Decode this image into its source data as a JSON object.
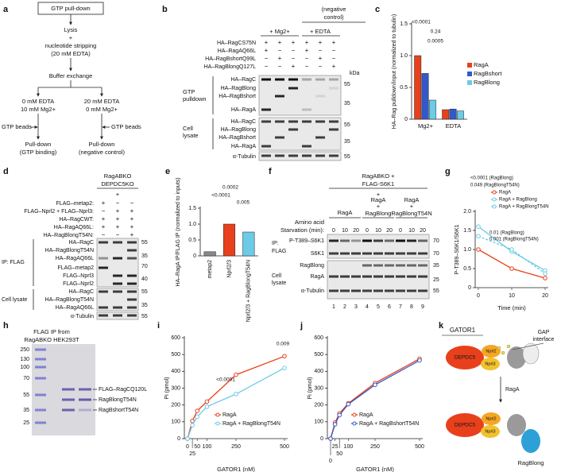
{
  "panel_labels": [
    "a",
    "b",
    "c",
    "d",
    "e",
    "f",
    "g",
    "h",
    "i",
    "j",
    "k"
  ],
  "a": {
    "title": "GTP pull-down",
    "lines": [
      "Lysis",
      "+",
      "nucleotide stripping",
      "(20 mM EDTA)",
      "Buffer exchange",
      "0 mM EDTA",
      "10 mM Mg2+",
      "20 mM EDTA",
      "0 mM Mg2+",
      "GTP beads",
      "GTP beads",
      "Pull-down",
      "(GTP binding)",
      "Pull-down",
      "(negative control)"
    ]
  },
  "b": {
    "header": [
      "(negative",
      "control)",
      "+ Mg2+",
      "+ EDTA"
    ],
    "rows": [
      "HA–RagCS75N",
      "HA–RagAQ66L",
      "HA–RagBshortQ99L",
      "HA–RagBlongQ127L"
    ],
    "signs": [
      [
        "+",
        "+",
        "+",
        "+",
        "+",
        "+"
      ],
      [
        "+",
        "−",
        "−",
        "+",
        "−",
        "−"
      ],
      [
        "−",
        "+",
        "−",
        "−",
        "+",
        "−"
      ],
      [
        "−",
        "−",
        "+",
        "−",
        "−",
        "+"
      ]
    ],
    "blot_titles": [
      "GTP",
      "pulldown",
      "Cell",
      "lysate"
    ],
    "bands": [
      "HA–RagC",
      "HA–RagBlong",
      "HA–RagBshort",
      "HA–RagA",
      "HA–RagC",
      "HA–RagBlong",
      "HA–RagBshort",
      "HA–RagA",
      "α-Tubulin"
    ],
    "kda": [
      "kDa",
      "55",
      "35",
      "55",
      "35",
      "55"
    ]
  },
  "d": {
    "header": [
      "RagABKO",
      "DEPDC5KO",
      "+"
    ],
    "rows": [
      "FLAG–metap2:",
      "FLAG–Nprl2 + FLAG–Nprl3:",
      "HA–RagCWT:",
      "HA–RagAQ66L:",
      "HA–RagBlongT54N:"
    ],
    "signs": [
      [
        "+",
        "−",
        "−"
      ],
      [
        "−",
        "+",
        "+"
      ],
      [
        "+",
        "+",
        "+"
      ],
      [
        "+",
        "+",
        "+"
      ],
      [
        "−",
        "−",
        "+"
      ]
    ],
    "blot_titles": [
      "IP: FLAG",
      "Cell lysate"
    ],
    "bands": [
      "HA–RagC",
      "HA–RagBlongT54N",
      "HA–RagAQ66L",
      "FLAG–metap2",
      "FLAG–Nprl3",
      "FLAG–Nprl2",
      "HA–RagC",
      "HA–RagBlongT54N",
      "HA–RagAQ66L",
      "α-Tubulin"
    ],
    "kda": [
      "55",
      "35",
      "70",
      "40",
      "55",
      "35",
      "55"
    ]
  },
  "f": {
    "header": [
      "RagABKO +",
      "FLAG-S6K1",
      "+"
    ],
    "groups": [
      "RagA",
      "RagA",
      "+",
      "RagBlong",
      "RagA",
      "+",
      "RagBlongT54N"
    ],
    "starvation": [
      "Amino acid",
      "Starvation (min):"
    ],
    "times": [
      "0",
      "10",
      "20",
      "0",
      "10",
      "20",
      "0",
      "10",
      "20"
    ],
    "blot_titles": [
      "IP:",
      "FLAG",
      "Cell",
      "lysate"
    ],
    "bands": [
      "P-T389–S6K1",
      "S6K1",
      "RagBlong",
      "RagA",
      "α-Tubulin"
    ],
    "kda": [
      "70",
      "70",
      "35",
      "25",
      "55"
    ],
    "lanes": [
      "1",
      "2",
      "3",
      "4",
      "5",
      "6",
      "7",
      "8",
      "9"
    ]
  },
  "h": {
    "title": [
      "FLAG IP from",
      "RagABKO HEK293T"
    ],
    "ladder": [
      "250",
      "130",
      "100",
      "70",
      "55",
      "35",
      "25"
    ],
    "bands": [
      "FLAG–RagCQ120L",
      "RagBlongT54N",
      "RagBshortT54N"
    ]
  },
  "k": {
    "title": "GATOR1",
    "proteins": [
      "DEPDC5",
      "Nprl2",
      "Nprl3",
      "DEPDC5",
      "Nprl2",
      "Nprl3"
    ],
    "gap": [
      "GAP",
      "interface"
    ],
    "arrow": "RagA",
    "bottom": "RagBlong"
  },
  "chart_data": [
    {
      "type": "bar",
      "y_label": "HA–Rag pulldown/input (normalized to tubulin)",
      "categories": [
        "Mg2+",
        "EDTA"
      ],
      "series": [
        {
          "name": "RagA",
          "color": "#e8401c",
          "values": [
            1.0,
            0.15
          ]
        },
        {
          "name": "RagBshort",
          "color": "#3558c8",
          "values": [
            0.72,
            0.16
          ]
        },
        {
          "name": "RagBlong",
          "color": "#6ccbe6",
          "values": [
            0.3,
            0.13
          ]
        }
      ],
      "ylim": [
        0,
        1.5
      ],
      "yticks": [
        0,
        0.5,
        {
          "value": 1,
          "label": "1.0"
        },
        1.5
      ],
      "annotations": [
        "<0.0001",
        "0.24",
        "0.0005"
      ]
    },
    {
      "type": "bar",
      "y_label": "HA–RagA IP/FLAG IP (normalized to inputs)",
      "categories": [
        "metap2",
        "Nprl2/3",
        "Nprl2/3 + RagBlongT54N"
      ],
      "values": [
        0.13,
        1.0,
        0.75
      ],
      "colors": [
        "#888888",
        "#e8401c",
        "#6ccbe6"
      ],
      "ylim": [
        0,
        1.5
      ],
      "yticks": [
        0,
        0.5,
        {
          "value": 1,
          "label": "1.0"
        },
        1.5
      ],
      "annotations": [
        "0.0002",
        "<0.0001",
        "0.005"
      ]
    },
    {
      "type": "line",
      "x_label": "Time (min)",
      "y_label": "P-T389–S6K1/S6K1",
      "x": [
        0,
        10,
        20
      ],
      "series": [
        {
          "name": "RagA",
          "color": "#e8401c",
          "values": [
            1.0,
            0.5,
            0.25
          ]
        },
        {
          "name": "RagA + RagBlong",
          "color": "#6ccbe6",
          "values": [
            1.6,
            0.95,
            0.45
          ]
        },
        {
          "name": "RagA + RagBlongT54N",
          "color": "#6ccbe6",
          "dashed": true,
          "values": [
            1.35,
            1.0,
            0.37
          ]
        }
      ],
      "xlim": [
        0,
        20
      ],
      "xticks": [
        0,
        10,
        20
      ],
      "ylim": [
        0,
        2
      ],
      "yticks": [
        0,
        0.5,
        {
          "value": 1,
          "label": "1.0"
        },
        1.5,
        {
          "value": 2,
          "label": "2.0"
        }
      ],
      "annotations": [
        "<0.0001 (RagBlong)",
        "0.049 (RagBlongT54N)",
        "0.01 (RagBlong)",
        "0.001 (RagBlongT54N)"
      ]
    },
    {
      "type": "line",
      "x_label": "GATOR1 (nM)",
      "y_label": "Pi (pmol)",
      "x": [
        0,
        25,
        50,
        100,
        250,
        500
      ],
      "series": [
        {
          "name": "RagA",
          "color": "#e8401c",
          "values": [
            0,
            105,
            165,
            220,
            380,
            490
          ]
        },
        {
          "name": "RagA + RagBlongT54N",
          "color": "#6ccbe6",
          "values": [
            0,
            80,
            130,
            190,
            265,
            420
          ]
        }
      ],
      "xlim": [
        0,
        500
      ],
      "xticks": [
        0,
        25,
        50,
        100,
        250,
        500
      ],
      "ylim": [
        0,
        600
      ],
      "yticks": [
        0,
        100,
        200,
        300,
        400,
        500,
        600
      ],
      "annotations": [
        "<0.0001",
        "0.009"
      ]
    },
    {
      "type": "line",
      "x_label": "GATOR1 (nM)",
      "y_label": "Pi (pmol)",
      "x": [
        0,
        25,
        50,
        100,
        250,
        500
      ],
      "series": [
        {
          "name": "RagA",
          "color": "#e8401c",
          "values": [
            0,
            95,
            150,
            210,
            330,
            475
          ]
        },
        {
          "name": "RagA + RagBshortT54N",
          "color": "#3558c8",
          "values": [
            0,
            85,
            140,
            205,
            320,
            465
          ]
        }
      ],
      "xlim": [
        0,
        500
      ],
      "xticks": [
        0,
        25,
        50,
        100,
        250,
        500
      ],
      "ylim": [
        0,
        600
      ],
      "yticks": [
        0,
        100,
        200,
        300,
        400,
        500,
        600
      ]
    }
  ]
}
